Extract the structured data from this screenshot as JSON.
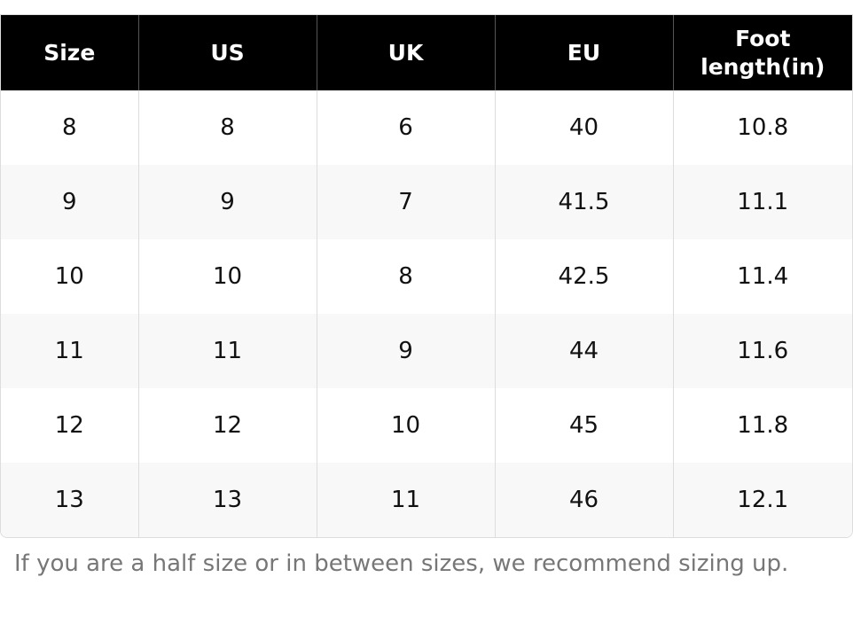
{
  "table": {
    "headers": [
      "Size",
      "US",
      "UK",
      "EU",
      "Foot length(in)"
    ],
    "rows": [
      [
        "8",
        "8",
        "6",
        "40",
        "10.8"
      ],
      [
        "9",
        "9",
        "7",
        "41.5",
        "11.1"
      ],
      [
        "10",
        "10",
        "8",
        "42.5",
        "11.4"
      ],
      [
        "11",
        "11",
        "9",
        "44",
        "11.6"
      ],
      [
        "12",
        "12",
        "10",
        "45",
        "11.8"
      ],
      [
        "13",
        "13",
        "11",
        "46",
        "12.1"
      ]
    ]
  },
  "note": "If you are a half size or in between sizes, we recommend sizing up."
}
